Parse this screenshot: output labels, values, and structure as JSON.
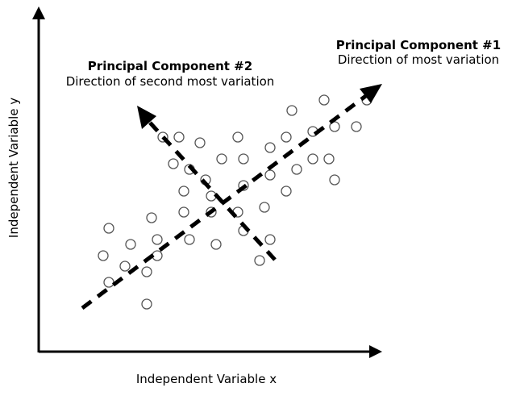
{
  "axes": {
    "x_label": "Independent Variable x",
    "y_label": "Independent Variable y"
  },
  "pc1": {
    "title": "Principal Component #1",
    "subtitle": "Direction of most variation"
  },
  "pc2": {
    "title": "Principal Component #2",
    "subtitle": "Direction of second most variation"
  },
  "colors": {
    "ink": "#000000",
    "point_stroke": "#555555",
    "background": "#ffffff"
  }
}
